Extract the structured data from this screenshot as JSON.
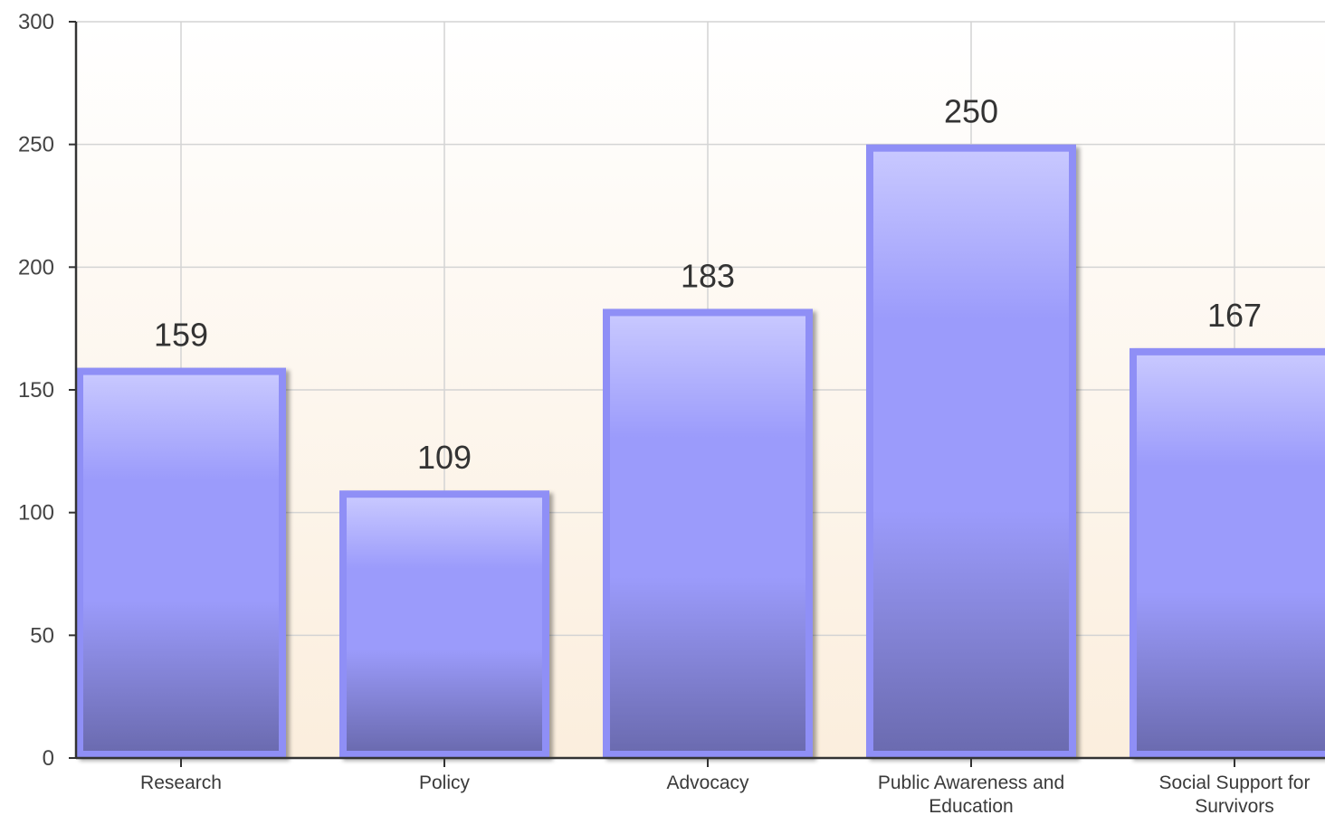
{
  "chart_data": {
    "type": "bar",
    "categories": [
      [
        "Research"
      ],
      [
        "Policy"
      ],
      [
        "Advocacy"
      ],
      [
        "Public Awareness and",
        "Education"
      ],
      [
        "Social Support for",
        "Survivors"
      ]
    ],
    "values": [
      159,
      109,
      183,
      250,
      167
    ],
    "value_labels": [
      "159",
      "109",
      "183",
      "250",
      "167"
    ],
    "y_ticks": [
      "0",
      "50",
      "100",
      "150",
      "200",
      "250",
      "300"
    ],
    "title": "",
    "xlabel": "",
    "ylabel": "",
    "ylim": [
      0,
      300
    ],
    "grid": true,
    "legend": "none",
    "colors": {
      "bar_light": "#c8c8ff",
      "bar_mid": "#9b9bfb",
      "bar_dark": "#6b6bb0",
      "bar_border": "#8f8ff6",
      "background_top": "#ffffff",
      "background_bottom": "#fbeedd",
      "grid": "#d4d4d4",
      "axis": "#333333"
    }
  }
}
